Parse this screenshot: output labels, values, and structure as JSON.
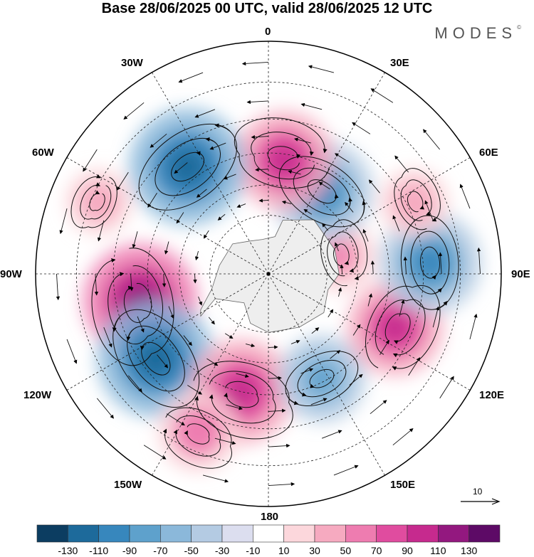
{
  "header": {
    "title": "Base 28/06/2025 00 UTC, valid 28/06/2025 12 UTC",
    "brand": "MODES",
    "brand_mark": "©"
  },
  "map": {
    "projection": "south-polar-stereographic",
    "longitude_labels": {
      "l0": "0",
      "l30e": "30E",
      "l60e": "60E",
      "l90e": "90E",
      "l120e": "120E",
      "l150e": "150E",
      "l180": "180",
      "l150w": "150W",
      "l120w": "120W",
      "l90w": "90W",
      "l60w": "60W",
      "l30w": "30W"
    },
    "field": "shaded anomaly with wind streamlines",
    "anomalies": [
      {
        "lon": -78,
        "lat": -47,
        "value": 120
      },
      {
        "lon": -53,
        "lat": -44,
        "value": -125
      },
      {
        "lon": -13,
        "lat": -50,
        "value": 105
      },
      {
        "lon": 27,
        "lat": -51,
        "value": -75
      },
      {
        "lon": 67,
        "lat": -45,
        "value": 90
      },
      {
        "lon": 94,
        "lat": -38,
        "value": -100
      },
      {
        "lon": 116,
        "lat": -38,
        "value": 45
      },
      {
        "lon": 104,
        "lat": -65,
        "value": 50
      },
      {
        "lon": 147,
        "lat": -57,
        "value": -100
      },
      {
        "lon": 172,
        "lat": -52,
        "value": 95
      },
      {
        "lon": -143,
        "lat": -46,
        "value": -125
      },
      {
        "lon": -24,
        "lat": -35,
        "value": 65
      },
      {
        "lon": -113,
        "lat": -32,
        "value": 40
      }
    ],
    "reference_vector": "10"
  },
  "colorbar": {
    "colors": [
      "#0c3d61",
      "#1d6a9b",
      "#3787bd",
      "#5ea1cc",
      "#8bb8da",
      "#b4cbe3",
      "#dcdeef",
      "#ffffff",
      "#fcd7dc",
      "#f6aac0",
      "#ee7cb0",
      "#e04c9f",
      "#c62a8e",
      "#93187f",
      "#5d0a66"
    ],
    "labels": [
      "-130",
      "-110",
      "-90",
      "-70",
      "-50",
      "-30",
      "-10",
      "10",
      "30",
      "50",
      "70",
      "90",
      "110",
      "130"
    ]
  }
}
